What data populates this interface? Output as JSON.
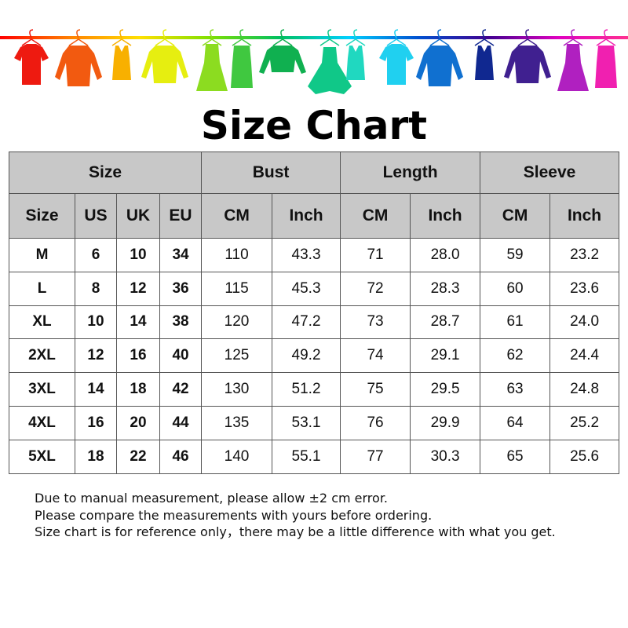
{
  "rack": {
    "bar_gradient": [
      "#ff0000",
      "#ff8000",
      "#ffe000",
      "#80e000",
      "#00c060",
      "#00d0ff",
      "#0050d0",
      "#400090",
      "#e000c0",
      "#ff3090"
    ],
    "items": [
      {
        "type": "tshirt",
        "color": "#ee1a10"
      },
      {
        "type": "shirt",
        "color": "#f25a10"
      },
      {
        "type": "tank",
        "color": "#f8b000"
      },
      {
        "type": "sweater",
        "color": "#e6ee10"
      },
      {
        "type": "dress",
        "color": "#8cdc20"
      },
      {
        "type": "tank-dress",
        "color": "#40c840"
      },
      {
        "type": "sweater-plain",
        "color": "#10b050"
      },
      {
        "type": "dress-wide",
        "color": "#10c888"
      },
      {
        "type": "tank",
        "color": "#20d8c0"
      },
      {
        "type": "tshirt",
        "color": "#20d0f0"
      },
      {
        "type": "shirt",
        "color": "#1070d0"
      },
      {
        "type": "tank",
        "color": "#102890"
      },
      {
        "type": "sweater",
        "color": "#402090"
      },
      {
        "type": "dress",
        "color": "#b020c0"
      },
      {
        "type": "tank-dress",
        "color": "#f020b0"
      }
    ]
  },
  "title": "Size Chart",
  "table": {
    "groups": [
      "Size",
      "Bust",
      "Length",
      "Sleeve"
    ],
    "subheaders": [
      "Size",
      "US",
      "UK",
      "EU",
      "CM",
      "Inch",
      "CM",
      "Inch",
      "CM",
      "Inch"
    ],
    "rows": [
      [
        "M",
        "6",
        "10",
        "34",
        "110",
        "43.3",
        "71",
        "28.0",
        "59",
        "23.2"
      ],
      [
        "L",
        "8",
        "12",
        "36",
        "115",
        "45.3",
        "72",
        "28.3",
        "60",
        "23.6"
      ],
      [
        "XL",
        "10",
        "14",
        "38",
        "120",
        "47.2",
        "73",
        "28.7",
        "61",
        "24.0"
      ],
      [
        "2XL",
        "12",
        "16",
        "40",
        "125",
        "49.2",
        "74",
        "29.1",
        "62",
        "24.4"
      ],
      [
        "3XL",
        "14",
        "18",
        "42",
        "130",
        "51.2",
        "75",
        "29.5",
        "63",
        "24.8"
      ],
      [
        "4XL",
        "16",
        "20",
        "44",
        "135",
        "53.1",
        "76",
        "29.9",
        "64",
        "25.2"
      ],
      [
        "5XL",
        "18",
        "22",
        "46",
        "140",
        "55.1",
        "77",
        "30.3",
        "65",
        "25.6"
      ]
    ]
  },
  "notes": [
    "Due to manual measurement, please allow ±2 cm error.",
    "Please compare the measurements with yours before ordering.",
    "Size chart is for reference only，there may be a little difference with what you get."
  ]
}
